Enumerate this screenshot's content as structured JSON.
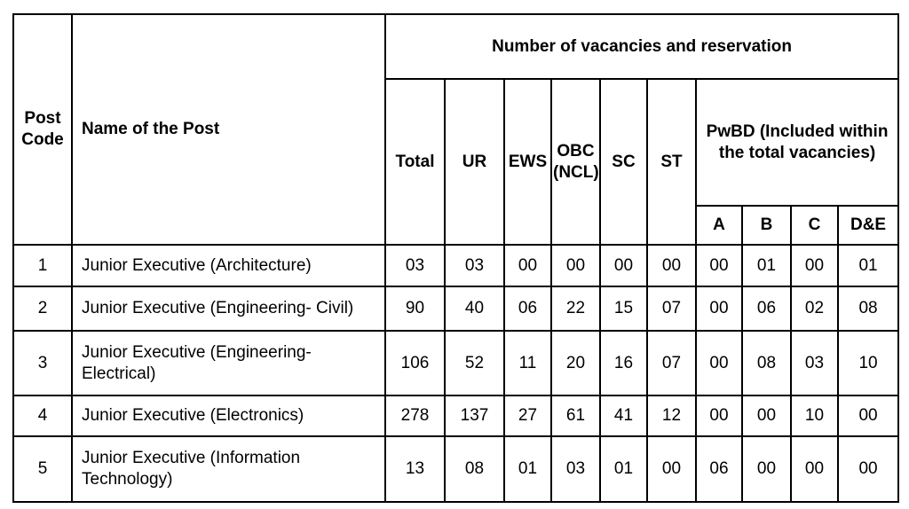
{
  "header": {
    "post_code": "Post Code",
    "post_name": "Name of the Post",
    "group_title": "Number of vacancies and reservation",
    "total": "Total",
    "ur": "UR",
    "ews": "EWS",
    "obc": "OBC (NCL)",
    "sc": "SC",
    "st": "ST",
    "pwbd": "PwBD (Included within the total vacancies)",
    "pwbd_a": "A",
    "pwbd_b": "B",
    "pwbd_c": "C",
    "pwbd_de": "D&E"
  },
  "rows": [
    {
      "code": "1",
      "name": "Junior Executive (Architecture)",
      "total": "03",
      "ur": "03",
      "ews": "00",
      "obc": "00",
      "sc": "00",
      "st": "00",
      "a": "00",
      "b": "01",
      "c": "00",
      "de": "01"
    },
    {
      "code": "2",
      "name": "Junior Executive (Engineering- Civil)",
      "total": "90",
      "ur": "40",
      "ews": "06",
      "obc": "22",
      "sc": "15",
      "st": "07",
      "a": "00",
      "b": "06",
      "c": "02",
      "de": "08"
    },
    {
      "code": "3",
      "name": "Junior Executive (Engineering-Electrical)",
      "total": "106",
      "ur": "52",
      "ews": "11",
      "obc": "20",
      "sc": "16",
      "st": "07",
      "a": "00",
      "b": "08",
      "c": "03",
      "de": "10"
    },
    {
      "code": "4",
      "name": "Junior Executive (Electronics)",
      "total": "278",
      "ur": "137",
      "ews": "27",
      "obc": "61",
      "sc": "41",
      "st": "12",
      "a": "00",
      "b": "00",
      "c": "10",
      "de": "00"
    },
    {
      "code": "5",
      "name": "Junior Executive (Information Technology)",
      "total": "13",
      "ur": "08",
      "ews": "01",
      "obc": "03",
      "sc": "01",
      "st": "00",
      "a": "06",
      "b": "00",
      "c": "00",
      "de": "00"
    }
  ]
}
